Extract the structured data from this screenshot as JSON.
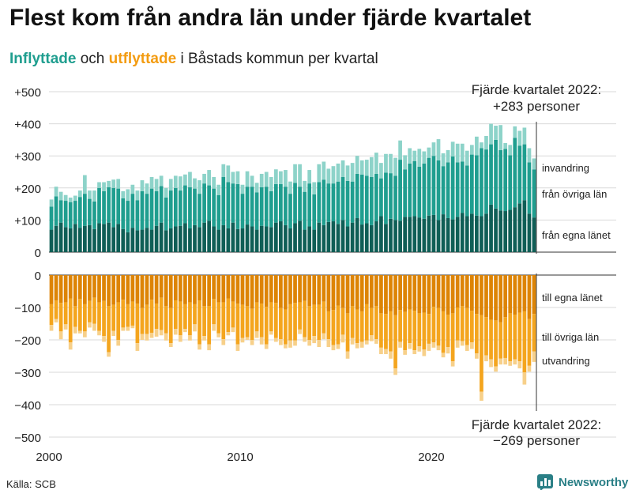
{
  "title": "Flest kom från andra län under fjärde kvartalet",
  "subtitle": {
    "in_word": "Inflyttade",
    "and_word": "och",
    "out_word": "utflyttade",
    "rest": "i Båstads kommun per kvartal"
  },
  "source": "Källa: SCB",
  "brand": "Newsworthy",
  "colors": {
    "in_egna": "#0f5e56",
    "in_ovriga": "#1f9e8f",
    "in_invandring": "#8dd3c9",
    "out_egna": "#dd8405",
    "out_ovriga": "#f4a51e",
    "out_utvandring": "#f7d08a"
  },
  "chart_data": {
    "type": "bar",
    "stacked": true,
    "x_start": 2000,
    "quarters_per_year": 4,
    "x_ticks": [
      "2000",
      "2010",
      "2020"
    ],
    "y_ticks": [
      "+500",
      "+400",
      "+300",
      "+200",
      "+100",
      "0",
      "0",
      "−100",
      "−200",
      "−300",
      "−400",
      "−500"
    ],
    "upper_ylim": [
      0,
      500
    ],
    "lower_ylim": [
      -500,
      0
    ],
    "annotations": {
      "top_line1": "Fjärde kvartalet 2022:",
      "top_line2": "+283 personer",
      "bottom_line1": "Fjärde kvartalet 2022:",
      "bottom_line2": "−269 personer"
    },
    "series": [
      {
        "name": "från egna länet",
        "group": "in",
        "values": [
          70,
          82,
          92,
          78,
          74,
          88,
          76,
          82,
          84,
          72,
          90,
          88,
          92,
          78,
          88,
          72,
          62,
          76,
          68,
          70,
          76,
          70,
          82,
          92,
          68,
          74,
          80,
          82,
          90,
          74,
          84,
          78,
          92,
          98,
          80,
          70,
          84,
          74,
          92,
          72,
          74,
          86,
          80,
          70,
          82,
          80,
          78,
          92,
          96,
          84,
          74,
          90,
          98,
          70,
          80,
          70,
          92,
          84,
          94,
          96,
          88,
          100,
          80,
          92,
          106,
          86,
          90,
          84,
          96,
          112,
          88,
          104,
          100,
          98,
          110,
          110,
          112,
          108,
          104,
          114,
          116,
          100,
          118,
          106,
          102,
          110,
          122,
          112,
          120,
          114,
          112,
          120,
          148,
          136,
          130,
          128,
          132,
          140,
          152,
          162,
          120,
          108
        ]
      },
      {
        "name": "från övriga län",
        "group": "in",
        "values": [
          72,
          92,
          70,
          82,
          82,
          72,
          96,
          100,
          82,
          86,
          110,
          102,
          110,
          122,
          110,
          96,
          98,
          106,
          94,
          120,
          106,
          128,
          108,
          114,
          102,
          118,
          120,
          110,
          118,
          128,
          114,
          104,
          122,
          110,
          118,
          108,
          150,
          144,
          122,
          140,
          108,
          118,
          124,
          116,
          120,
          124,
          112,
          120,
          116,
          120,
          108,
          126,
          106,
          118,
          134,
          110,
          126,
          142,
          120,
          118,
          132,
          134,
          142,
          128,
          138,
          156,
          148,
          150,
          148,
          118,
          160,
          142,
          138,
          190,
          148,
          166,
          172,
          158,
          172,
          180,
          184,
          186,
          150,
          174,
          196,
          170,
          160,
          158,
          184,
          188,
          212,
          200,
          188,
          214,
          188,
          194,
          170,
          216,
          180,
          174,
          160,
          150
        ]
      },
      {
        "name": "invandring",
        "group": "in",
        "values": [
          22,
          30,
          26,
          18,
          14,
          16,
          20,
          58,
          26,
          34,
          18,
          28,
          20,
          26,
          30,
          22,
          36,
          28,
          30,
          34,
          32,
          36,
          38,
          32,
          30,
          36,
          38,
          44,
          34,
          48,
          32,
          42,
          30,
          48,
          36,
          32,
          40,
          52,
          36,
          40,
          28,
          48,
          34,
          30,
          42,
          46,
          44,
          46,
          40,
          52,
          38,
          58,
          70,
          34,
          42,
          38,
          56,
          56,
          46,
          54,
          56,
          52,
          48,
          58,
          56,
          44,
          50,
          62,
          66,
          48,
          58,
          60,
          56,
          60,
          44,
          48,
          32,
          56,
          38,
          32,
          42,
          66,
          40,
          38,
          46,
          58,
          56,
          46,
          30,
          58,
          18,
          42,
          64,
          44,
          78,
          18,
          32,
          36,
          46,
          52,
          44,
          34
        ]
      },
      {
        "name": "till egna länet",
        "group": "out",
        "values": [
          90,
          78,
          86,
          84,
          72,
          96,
          74,
          90,
          80,
          70,
          84,
          80,
          96,
          92,
          84,
          76,
          90,
          82,
          88,
          102,
          92,
          76,
          88,
          70,
          96,
          102,
          78,
          82,
          90,
          84,
          90,
          78,
          96,
          96,
          74,
          84,
          84,
          72,
          82,
          88,
          92,
          96,
          104,
          84,
          88,
          98,
          84,
          86,
          102,
          106,
          90,
          86,
          84,
          80,
          96,
          92,
          92,
          82,
          112,
          108,
          94,
          102,
          118,
          96,
          106,
          112,
          90,
          102,
          96,
          118,
          120,
          112,
          124,
          108,
          114,
          106,
          110,
          118,
          116,
          120,
          98,
          102,
          112,
          122,
          118,
          100,
          96,
          102,
          110,
          120,
          124,
          130,
          138,
          140,
          146,
          130,
          118,
          122,
          116,
          112,
          136,
          120
        ]
      },
      {
        "name": "till övriga län",
        "group": "out",
        "values": [
          64,
          58,
          88,
          68,
          136,
          64,
          98,
          84,
          66,
          80,
          88,
          108,
          142,
          80,
          116,
          86,
          70,
          74,
          122,
          80,
          90,
          102,
          78,
          100,
          84,
          108,
          88,
          104,
          76,
          102,
          62,
          136,
          92,
          118,
          78,
          96,
          114,
          104,
          80,
          126,
          102,
          96,
          96,
          90,
          104,
          116,
          90,
          108,
          96,
          108,
          112,
          116,
          84,
          112,
          104,
          96,
          108,
          98,
          86,
          108,
          120,
          82,
          118,
          98,
          104,
          94,
          112,
          84,
          102,
          106,
          108,
          124,
          164,
          98,
          118,
          104,
          122,
          102,
          114,
          92,
          110,
          116,
          128,
          100,
          148,
          102,
          108,
          114,
          98,
          122,
          236,
          118,
          122,
          142,
          112,
          126,
          148,
          138,
          150,
          188,
          144,
          116
        ]
      },
      {
        "name": "utvandring",
        "group": "out",
        "values": [
          18,
          10,
          24,
          16,
          22,
          20,
          8,
          18,
          16,
          22,
          14,
          18,
          14,
          16,
          18,
          10,
          12,
          8,
          24,
          18,
          20,
          16,
          24,
          16,
          22,
          12,
          18,
          20,
          10,
          16,
          22,
          16,
          14,
          18,
          20,
          12,
          18,
          10,
          14,
          20,
          14,
          8,
          16,
          20,
          22,
          14,
          10,
          12,
          18,
          12,
          22,
          16,
          14,
          14,
          18,
          22,
          22,
          18,
          24,
          16,
          14,
          24,
          22,
          20,
          16,
          18,
          12,
          18,
          14,
          20,
          16,
          22,
          20,
          18,
          14,
          18,
          12,
          16,
          20,
          22,
          16,
          14,
          14,
          20,
          16,
          22,
          14,
          18,
          20,
          16,
          28,
          18,
          24,
          16,
          18,
          20,
          14,
          16,
          22,
          38,
          18,
          32
        ]
      }
    ],
    "series_labels": {
      "in_invandring": "invandring",
      "in_ovriga": "från övriga län",
      "in_egna": "från egna länet",
      "out_egna": "till egna länet",
      "out_ovriga": "till övriga län",
      "out_utvandring": "utvandring"
    }
  }
}
